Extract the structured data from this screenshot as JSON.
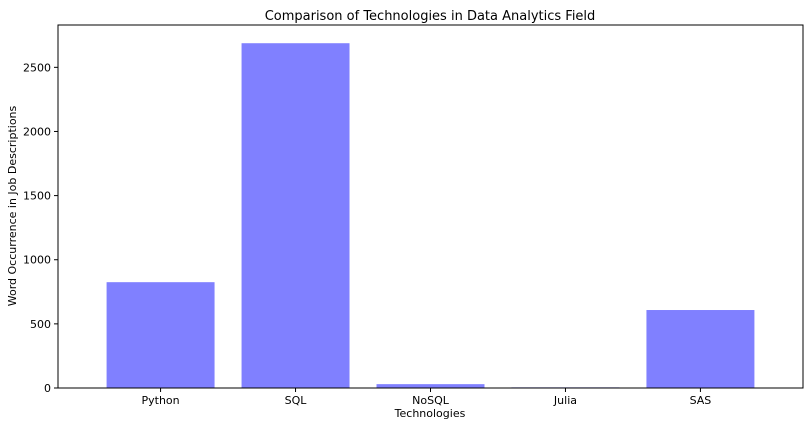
{
  "chart_data": {
    "type": "bar",
    "title": "Comparison of Technologies in Data Analytics Field",
    "xlabel": "Technologies",
    "ylabel": "Word Occurrence in Job Descriptions",
    "categories": [
      "Python",
      "SQL",
      "NoSQL",
      "Julia",
      "SAS"
    ],
    "values": [
      825,
      2688,
      30,
      5,
      608
    ],
    "ylim": [
      0,
      2830
    ],
    "yticks": [
      0,
      500,
      1000,
      1500,
      2000,
      2500
    ],
    "bar_color": "#8080ff",
    "grid": false
  }
}
